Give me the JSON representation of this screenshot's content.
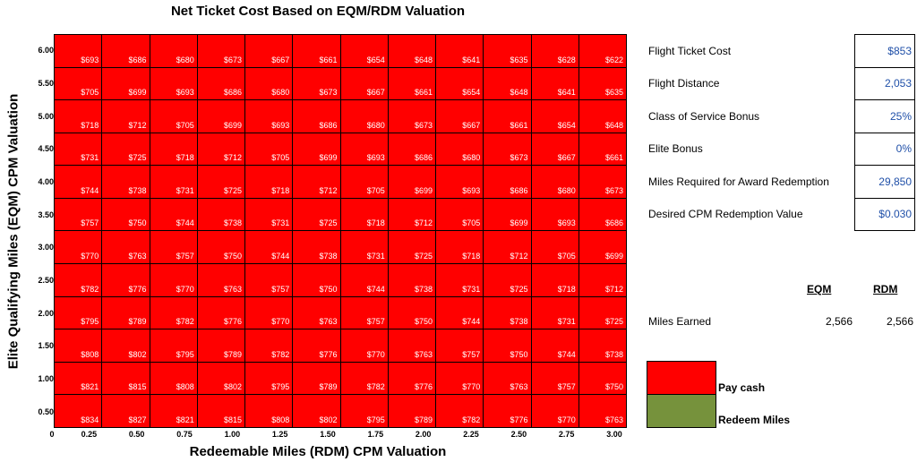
{
  "chart_data": {
    "type": "heatmap",
    "title": "Net Ticket Cost Based on EQM/RDM Valuation",
    "xlabel": "Redeemable Miles (RDM) CPM Valuation",
    "ylabel": "Elite Qualifying Miles (EQM) CPM Valuation",
    "x_origin_label": "0",
    "x_ticks": [
      "0.25",
      "0.50",
      "0.75",
      "1.00",
      "1.25",
      "1.50",
      "1.75",
      "2.00",
      "2.25",
      "2.50",
      "2.75",
      "3.00"
    ],
    "y_ticks": [
      "6.00",
      "5.50",
      "5.00",
      "4.50",
      "4.00",
      "3.50",
      "3.00",
      "2.50",
      "2.00",
      "1.50",
      "1.00",
      "0.50"
    ],
    "rows": [
      [
        "$693",
        "$686",
        "$680",
        "$673",
        "$667",
        "$661",
        "$654",
        "$648",
        "$641",
        "$635",
        "$628",
        "$622"
      ],
      [
        "$705",
        "$699",
        "$693",
        "$686",
        "$680",
        "$673",
        "$667",
        "$661",
        "$654",
        "$648",
        "$641",
        "$635"
      ],
      [
        "$718",
        "$712",
        "$705",
        "$699",
        "$693",
        "$686",
        "$680",
        "$673",
        "$667",
        "$661",
        "$654",
        "$648"
      ],
      [
        "$731",
        "$725",
        "$718",
        "$712",
        "$705",
        "$699",
        "$693",
        "$686",
        "$680",
        "$673",
        "$667",
        "$661"
      ],
      [
        "$744",
        "$738",
        "$731",
        "$725",
        "$718",
        "$712",
        "$705",
        "$699",
        "$693",
        "$686",
        "$680",
        "$673"
      ],
      [
        "$757",
        "$750",
        "$744",
        "$738",
        "$731",
        "$725",
        "$718",
        "$712",
        "$705",
        "$699",
        "$693",
        "$686"
      ],
      [
        "$770",
        "$763",
        "$757",
        "$750",
        "$744",
        "$738",
        "$731",
        "$725",
        "$718",
        "$712",
        "$705",
        "$699"
      ],
      [
        "$782",
        "$776",
        "$770",
        "$763",
        "$757",
        "$750",
        "$744",
        "$738",
        "$731",
        "$725",
        "$718",
        "$712"
      ],
      [
        "$795",
        "$789",
        "$782",
        "$776",
        "$770",
        "$763",
        "$757",
        "$750",
        "$744",
        "$738",
        "$731",
        "$725"
      ],
      [
        "$808",
        "$802",
        "$795",
        "$789",
        "$782",
        "$776",
        "$770",
        "$763",
        "$757",
        "$750",
        "$744",
        "$738"
      ],
      [
        "$821",
        "$815",
        "$808",
        "$802",
        "$795",
        "$789",
        "$782",
        "$776",
        "$770",
        "$763",
        "$757",
        "$750"
      ],
      [
        "$834",
        "$827",
        "$821",
        "$815",
        "$808",
        "$802",
        "$795",
        "$789",
        "$782",
        "$776",
        "$770",
        "$763"
      ]
    ],
    "cell_state": "pay-cash"
  },
  "params": [
    {
      "label": "Flight Ticket Cost",
      "value": "$853"
    },
    {
      "label": "Flight Distance",
      "value": "2,053"
    },
    {
      "label": "Class of Service Bonus",
      "value": "25%"
    },
    {
      "label": "Elite Bonus",
      "value": "0%"
    },
    {
      "label": "Miles Required for Award Redemption",
      "value": "29,850"
    },
    {
      "label": "Desired CPM Redemption Value",
      "value": "$0.030"
    }
  ],
  "earned": {
    "eqm_header": "EQM",
    "rdm_header": "RDM",
    "label": "Miles Earned",
    "eqm_value": "2,566",
    "rdm_value": "2,566"
  },
  "legend": [
    {
      "label": "Pay cash",
      "color": "#ff0000"
    },
    {
      "label": "Redeem Miles",
      "color": "#76923c"
    }
  ],
  "colors": {
    "pay_cash": "#ff0000",
    "redeem_miles": "#76923c",
    "param_value": "#1f4fa8"
  }
}
